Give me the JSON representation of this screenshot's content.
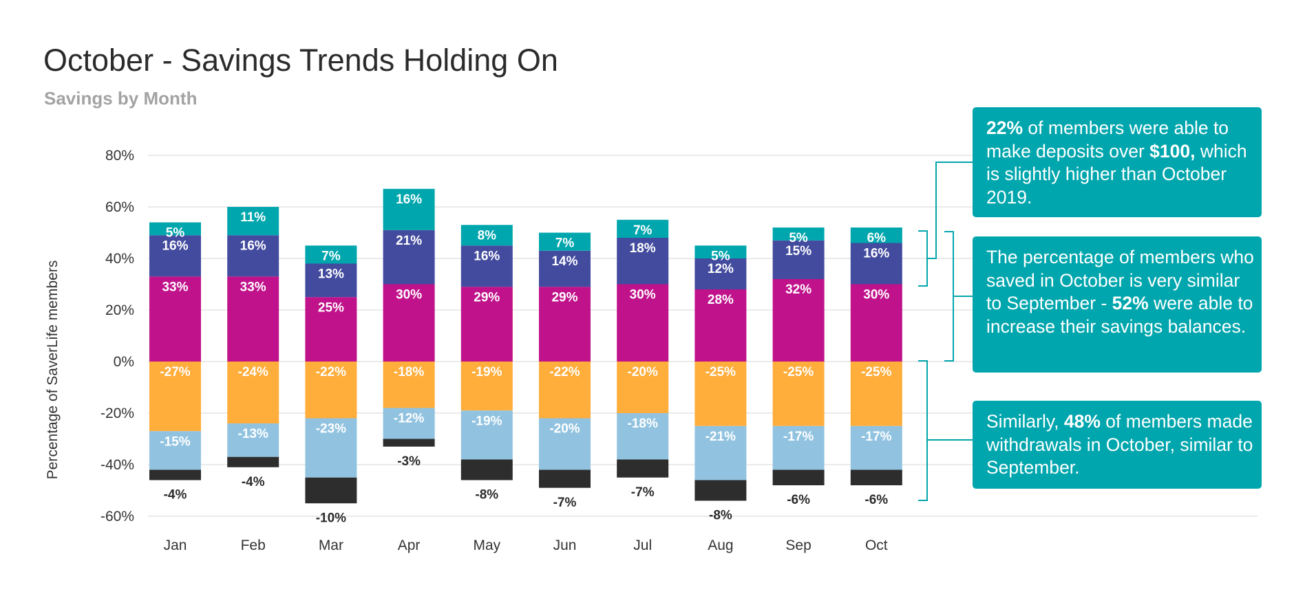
{
  "chart_data": {
    "type": "bar",
    "stacked": true,
    "title": "October - Savings Trends Holding On",
    "subtitle": "Savings by Month",
    "ylabel": "Percentage of SaverLife members",
    "xlabel": "",
    "ylim": [
      -60,
      80
    ],
    "yticks": [
      "80%",
      "60%",
      "40%",
      "20%",
      "0%",
      "-20%",
      "-40%",
      "-60%"
    ],
    "ytick_values": [
      80,
      60,
      40,
      20,
      0,
      -20,
      -40,
      -60
    ],
    "grid": true,
    "categories": [
      "Jan",
      "Feb",
      "Mar",
      "Apr",
      "May",
      "Jun",
      "Jul",
      "Aug",
      "Sep",
      "Oct"
    ],
    "series": [
      {
        "color": "#c0128b",
        "values": [
          33,
          33,
          25,
          30,
          29,
          29,
          30,
          28,
          32,
          30
        ]
      },
      {
        "color": "#434b9e",
        "values": [
          16,
          16,
          13,
          21,
          16,
          14,
          18,
          12,
          15,
          16
        ]
      },
      {
        "color": "#00a6ad",
        "values": [
          5,
          11,
          7,
          16,
          8,
          7,
          7,
          5,
          5,
          6
        ]
      },
      {
        "color": "#ffad3b",
        "values": [
          -27,
          -24,
          -22,
          -18,
          -19,
          -22,
          -20,
          -25,
          -25,
          -25
        ]
      },
      {
        "color": "#91c3e0",
        "values": [
          -15,
          -13,
          -23,
          -12,
          -19,
          -20,
          -18,
          -21,
          -17,
          -17
        ]
      },
      {
        "color": "#2d2d2d",
        "values": [
          -4,
          -4,
          -10,
          -3,
          -8,
          -7,
          -7,
          -8,
          -6,
          -6
        ]
      }
    ],
    "annotations": [
      {
        "bold": "22%",
        "text1": " of members were able to make deposits over ",
        "bold2": "$100,",
        "text2": " which is slightly higher than October 2019."
      },
      {
        "text0": "The percentage of members who saved in October is very similar to September - ",
        "bold": "52%",
        "text1": " were able to increase their savings balances."
      },
      {
        "text0": "Similarly, ",
        "bold": "48%",
        "text1": " of members made withdrawals in October, similar to September."
      }
    ]
  }
}
